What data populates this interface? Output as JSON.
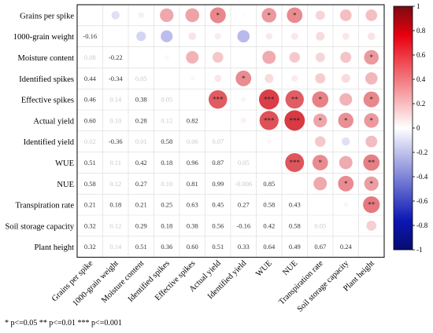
{
  "chart_data": {
    "type": "heatmap",
    "variables": [
      "Grains per spike",
      "1000-grain weight",
      "Moisture content",
      "Identified spikes",
      "Effective spikes",
      "Actual yield",
      "Identified yield",
      "WUE",
      "NUE",
      "Transpiration rate",
      "Soil storage capacity",
      "Plant height"
    ],
    "lower_values": [
      [],
      [
        -0.16
      ],
      [
        0.08,
        -0.22
      ],
      [
        0.44,
        -0.34,
        0.05
      ],
      [
        0.46,
        0.14,
        0.38,
        0.05
      ],
      [
        0.6,
        0.1,
        0.28,
        0.12,
        0.82
      ],
      [
        0.02,
        -0.36,
        0.01,
        0.58,
        0.06,
        0.07
      ],
      [
        0.51,
        0.11,
        0.42,
        0.18,
        0.96,
        0.87,
        0.05
      ],
      [
        0.58,
        0.12,
        0.27,
        0.1,
        0.81,
        0.99,
        -0.006,
        0.85
      ],
      [
        0.21,
        0.18,
        0.21,
        0.25,
        0.63,
        0.45,
        0.27,
        0.58,
        0.43
      ],
      [
        0.32,
        0.12,
        0.29,
        0.18,
        0.38,
        0.56,
        -0.16,
        0.42,
        0.58,
        0.05
      ],
      [
        0.32,
        0.14,
        0.51,
        0.36,
        0.6,
        0.51,
        0.33,
        0.64,
        0.49,
        0.67,
        0.24
      ]
    ],
    "upper_stars": [
      [
        0,
        0,
        "",
        "",
        "*",
        "",
        "*",
        "*",
        "",
        ""
      ],
      [
        1,
        2,
        "",
        "",
        "",
        "",
        "",
        "",
        "",
        ""
      ],
      [
        3,
        6,
        "*",
        "",
        "",
        "",
        "",
        "",
        "",
        ""
      ],
      [
        4,
        5,
        "***",
        "",
        "",
        "",
        "",
        "",
        "",
        ""
      ],
      [
        4,
        7,
        "***",
        "",
        "",
        "",
        "",
        "",
        "",
        ""
      ],
      [
        4,
        8,
        "**",
        "",
        "",
        "",
        "",
        "",
        "",
        ""
      ],
      [
        4,
        9,
        "*",
        "",
        "",
        "",
        "",
        "",
        "",
        ""
      ],
      [
        4,
        11,
        "*",
        "",
        "",
        "",
        "",
        "",
        "",
        ""
      ],
      [
        5,
        7,
        "***",
        "",
        "",
        "",
        "",
        "",
        "",
        ""
      ],
      [
        5,
        8,
        "***",
        "",
        "",
        "",
        "",
        "",
        "",
        ""
      ],
      [
        5,
        9,
        "*",
        "",
        "",
        "",
        "",
        "",
        "",
        ""
      ],
      [
        5,
        10,
        "*",
        "",
        "",
        "",
        "",
        "",
        "",
        ""
      ],
      [
        5,
        11,
        "*",
        "",
        "",
        "",
        "",
        "",
        "",
        ""
      ],
      [
        7,
        8,
        "***",
        "",
        "",
        "",
        "",
        "",
        "",
        ""
      ],
      [
        7,
        9,
        "*",
        "",
        "",
        "",
        "",
        "",
        "",
        ""
      ],
      [
        7,
        11,
        "**",
        "",
        "",
        "",
        "",
        "",
        "",
        ""
      ],
      [
        8,
        10,
        "*",
        "",
        "",
        "",
        "",
        "",
        "",
        ""
      ],
      [
        8,
        11,
        "*",
        "",
        "",
        "",
        "",
        "",
        "",
        ""
      ],
      [
        9,
        11,
        "**",
        "",
        "",
        "",
        "",
        "",
        "",
        ""
      ],
      [
        2,
        11,
        "*",
        "",
        "",
        "",
        "",
        "",
        "",
        ""
      ],
      [
        0,
        5,
        "*",
        "",
        "",
        "",
        "",
        "",
        "",
        ""
      ],
      [
        0,
        7,
        "*",
        "",
        "",
        "",
        "",
        "",
        "",
        ""
      ],
      [
        0,
        8,
        "*",
        "",
        "",
        "",
        "",
        "",
        "",
        ""
      ]
    ],
    "colorbar": {
      "min": -1,
      "max": 1,
      "ticks": [
        "1",
        "0.8",
        "0.6",
        "0.4",
        "0.2",
        "0",
        "-0.2",
        "-0.4",
        "-0.6",
        "-0.8",
        "-1"
      ],
      "colors": {
        "positive": "#e8000e",
        "neutral": "#ffffff",
        "negative": "#0b17b3"
      }
    },
    "legend": "* p<=0.05  ** p<=0.01  *** p<=0.001"
  }
}
